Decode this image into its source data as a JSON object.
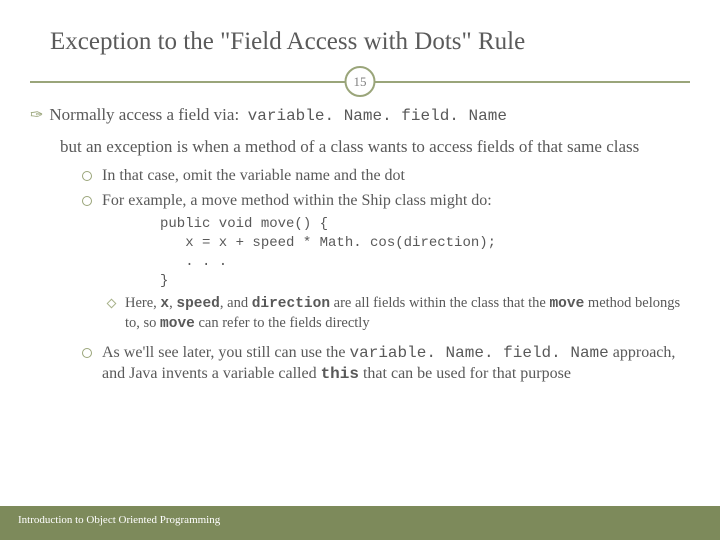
{
  "title": "Exception to the \"Field Access with Dots\" Rule",
  "page_number": "15",
  "line1_prefix": "Normally access a field via:",
  "line1_code": "variable. Name. field. Name",
  "para2": "but an exception is when a method of a class wants to access fields of that same class",
  "sub1": "In that case, omit the variable name and the dot",
  "sub2": "For example, a move method within the Ship class might do:",
  "code": "public void move() {\n   x = x + speed * Math. cos(direction);\n   . . .\n}",
  "subsub_a": "Here, ",
  "subsub_x": "x",
  "subsub_b": ", ",
  "subsub_speed": "speed",
  "subsub_c": ", and ",
  "subsub_dir": "direction",
  "subsub_d": " are all fields within the class that the ",
  "subsub_move": "move",
  "subsub_e": " method belongs to, so ",
  "subsub_move2": "move",
  "subsub_f": " can refer to the fields directly",
  "sub3_a": "As we'll see later, you still can use the ",
  "sub3_code": "variable. Name. field. Name",
  "sub3_b": " approach, and Java invents a variable called ",
  "sub3_this": "this",
  "sub3_c": " that can be used for that purpose",
  "footer": "Introduction to Object Oriented Programming",
  "colors": {
    "accent": "#9aa57a",
    "footer_bg": "#7d8a5b",
    "text": "#595959"
  }
}
